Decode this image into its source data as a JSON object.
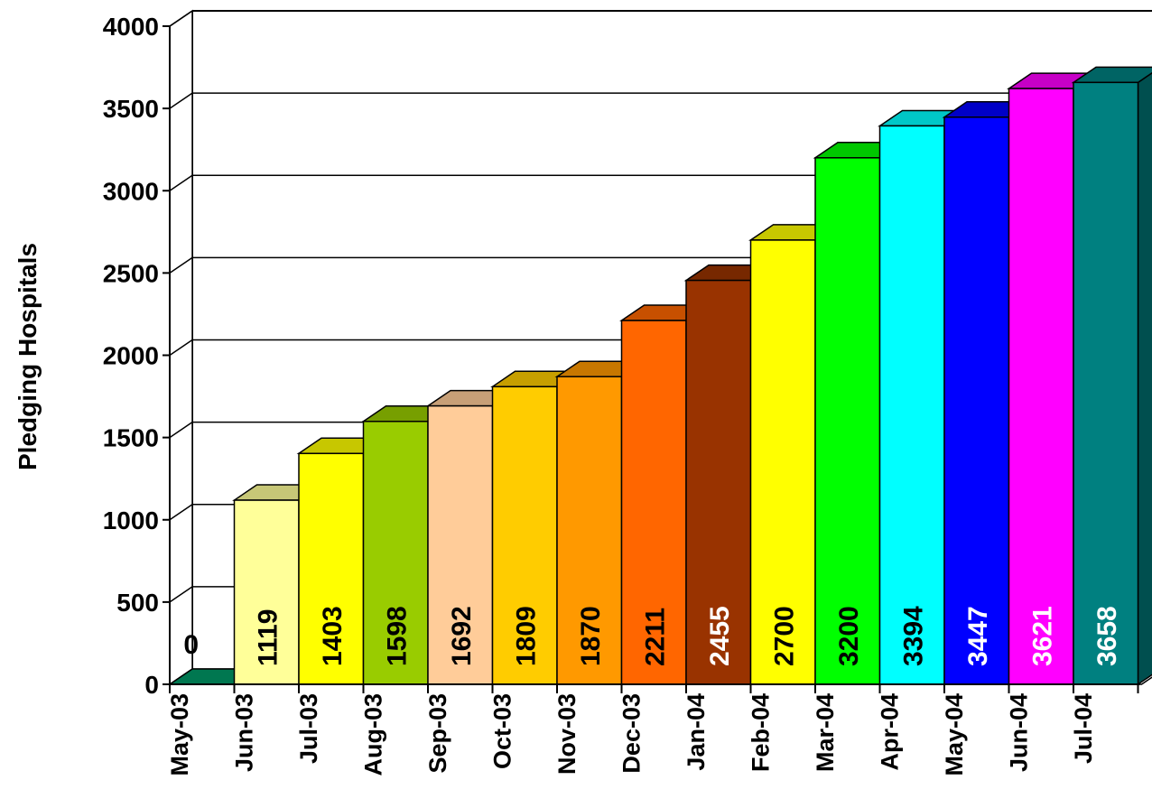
{
  "chart_data": {
    "type": "bar",
    "title": "",
    "xlabel": "",
    "ylabel": "Pledging Hospitals",
    "ylim": [
      0,
      4000
    ],
    "yticks": [
      0,
      500,
      1000,
      1500,
      2000,
      2500,
      3000,
      3500,
      4000
    ],
    "grid": true,
    "style": "3d",
    "categories": [
      "May-03",
      "Jun-03",
      "Jul-03",
      "Aug-03",
      "Sep-03",
      "Oct-03",
      "Nov-03",
      "Dec-03",
      "Jan-04",
      "Feb-04",
      "Mar-04",
      "Apr-04",
      "May-04",
      "Jun-04",
      "Jul-04"
    ],
    "values": [
      0,
      1119,
      1403,
      1598,
      1692,
      1809,
      1870,
      2211,
      2455,
      2700,
      3200,
      3394,
      3447,
      3621,
      3658
    ],
    "data_labels": [
      "0",
      "1119",
      "1403",
      "1598",
      "1692",
      "1809",
      "1870",
      "2211",
      "2455",
      "2700",
      "3200",
      "3394",
      "3447",
      "3621",
      "3658"
    ],
    "bar_colors": [
      "#009966",
      "#FFFF99",
      "#FFFF00",
      "#99CC00",
      "#FFCC99",
      "#FFCC00",
      "#FF9900",
      "#FF6600",
      "#993300",
      "#FFFF00",
      "#00FF00",
      "#00FFFF",
      "#0000FF",
      "#FF00FF",
      "#008080"
    ],
    "label_colors": [
      "#000000",
      "#000000",
      "#000000",
      "#000000",
      "#000000",
      "#000000",
      "#000000",
      "#000000",
      "#FFFFFF",
      "#000000",
      "#000000",
      "#000000",
      "#FFFFFF",
      "#FFFFFF",
      "#FFFFFF"
    ]
  }
}
